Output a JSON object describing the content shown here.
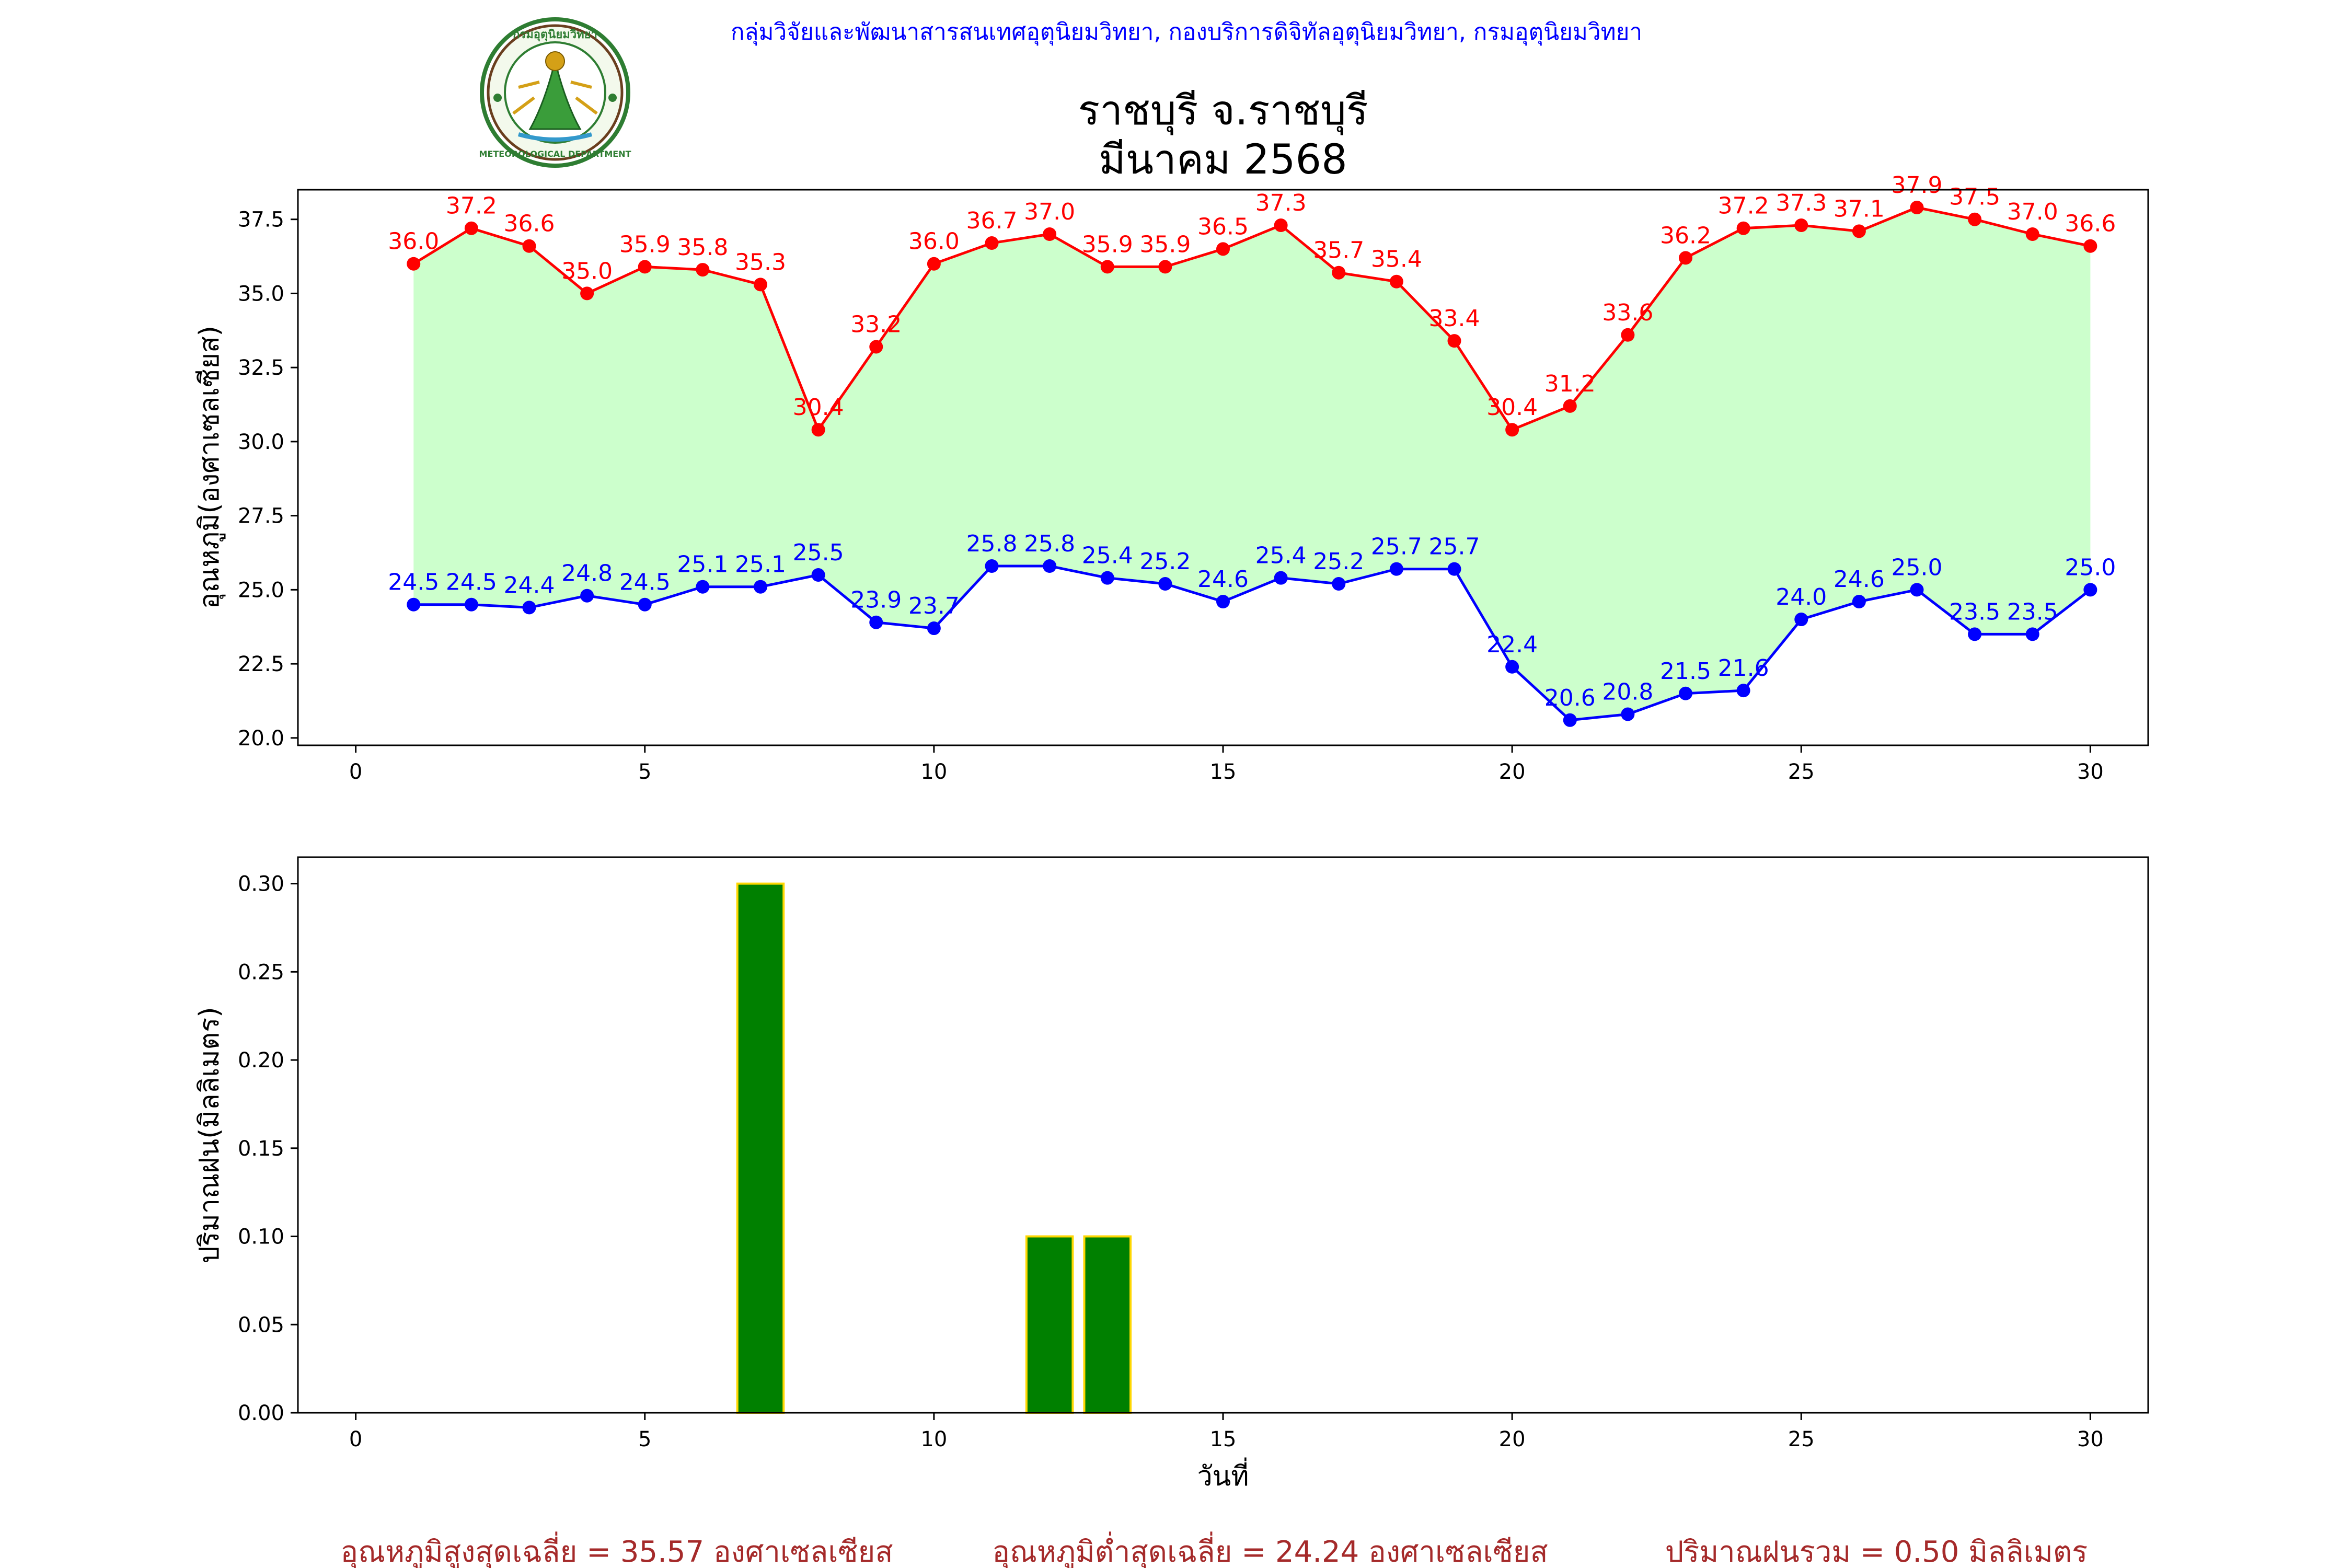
{
  "header": {
    "department": "กลุ่มวิจัยและพัฒนาสารสนเทศอุตุนิยมวิทยา, กองบริการดิจิทัลอุตุนิยมวิทยา, กรมอุตุนิยมวิทยา",
    "station": "ราชบุรี จ.ราชบุรี",
    "period": "มีนาคม 2568",
    "logo_text": "METEOROLOGICAL DEPARTMENT",
    "logo_top_text": "กรมอุตุนิยมวิทยา"
  },
  "colors": {
    "tmax": "#ff0000",
    "tmin": "#0000ff",
    "fill": "#ccffcc",
    "bar_fill": "#008000",
    "bar_edge": "#ffd700",
    "footer": "#a52a2a",
    "header": "#0000ff"
  },
  "chart_data": [
    {
      "type": "line",
      "ylabel": "อุณหภูมิ(องศาเซลเซียส)",
      "xlim": [
        -1,
        31
      ],
      "ylim": [
        19.75,
        38.5
      ],
      "xticks": [
        0,
        5,
        10,
        15,
        20,
        25,
        30
      ],
      "yticks": [
        20.0,
        22.5,
        25.0,
        27.5,
        30.0,
        32.5,
        35.0,
        37.5
      ],
      "fill_between": true,
      "x": [
        1,
        2,
        3,
        4,
        5,
        6,
        7,
        8,
        9,
        10,
        11,
        12,
        13,
        14,
        15,
        16,
        17,
        18,
        19,
        20,
        21,
        22,
        23,
        24,
        25,
        26,
        27,
        28,
        29,
        30
      ],
      "series": [
        {
          "name": "tmax",
          "color": "#ff0000",
          "values": [
            36.0,
            37.2,
            36.6,
            35.0,
            35.9,
            35.8,
            35.3,
            30.4,
            33.2,
            36.0,
            36.7,
            37.0,
            35.9,
            35.9,
            36.5,
            37.3,
            35.7,
            35.4,
            33.4,
            30.4,
            31.2,
            33.6,
            36.2,
            37.2,
            37.3,
            37.1,
            37.9,
            37.5,
            37.0,
            36.6
          ]
        },
        {
          "name": "tmin",
          "color": "#0000ff",
          "values": [
            24.5,
            24.5,
            24.4,
            24.8,
            24.5,
            25.1,
            25.1,
            25.5,
            23.9,
            23.7,
            25.8,
            25.8,
            25.4,
            25.2,
            24.6,
            25.4,
            25.2,
            25.7,
            25.7,
            22.4,
            20.6,
            20.8,
            21.5,
            21.6,
            24.0,
            24.6,
            25.0,
            23.5,
            23.5,
            25.0
          ]
        }
      ]
    },
    {
      "type": "bar",
      "ylabel": "ปริมาณฝน(มิลลิเมตร)",
      "xlabel": "วันที่",
      "xlim": [
        -1,
        31
      ],
      "ylim": [
        0,
        0.315
      ],
      "xticks": [
        0,
        5,
        10,
        15,
        20,
        25,
        30
      ],
      "yticks": [
        0.0,
        0.05,
        0.1,
        0.15,
        0.2,
        0.25,
        0.3
      ],
      "x": [
        1,
        2,
        3,
        4,
        5,
        6,
        7,
        8,
        9,
        10,
        11,
        12,
        13,
        14,
        15,
        16,
        17,
        18,
        19,
        20,
        21,
        22,
        23,
        24,
        25,
        26,
        27,
        28,
        29,
        30
      ],
      "values": [
        0,
        0,
        0,
        0,
        0,
        0,
        0.3,
        0,
        0,
        0,
        0,
        0.1,
        0.1,
        0,
        0,
        0,
        0,
        0,
        0,
        0,
        0,
        0,
        0,
        0,
        0,
        0,
        0,
        0,
        0,
        0
      ]
    }
  ],
  "footer": {
    "avg_max": "อุณหภูมิสูงสุดเฉลี่ย = 35.57 องศาเซลเซียส",
    "avg_min": "อุณหภูมิต่ำสุดเฉลี่ย = 24.24 องศาเซลเซียส",
    "total_rain": "ปริมาณฝนรวม = 0.50 มิลลิเมตร"
  }
}
